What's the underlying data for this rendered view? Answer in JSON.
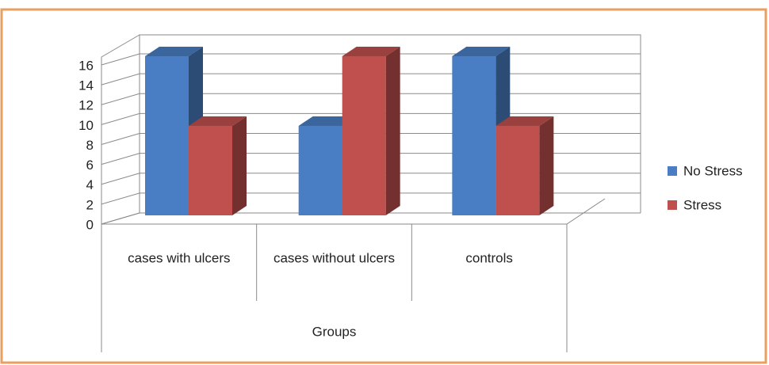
{
  "chart_data": {
    "type": "bar3d",
    "categories": [
      "cases with ulcers",
      "cases without ulcers",
      "controls"
    ],
    "x_label": "Groups",
    "series": [
      {
        "name": "No Stress",
        "color": "#4a7ec4",
        "values": [
          16,
          9,
          16
        ]
      },
      {
        "name": "Stress",
        "color": "#c0504d",
        "values": [
          9,
          16,
          9
        ]
      }
    ],
    "ylim": [
      0,
      16
    ],
    "yticks": [
      0,
      2,
      4,
      6,
      8,
      10,
      12,
      14,
      16
    ],
    "grid": true,
    "legend": "right"
  }
}
